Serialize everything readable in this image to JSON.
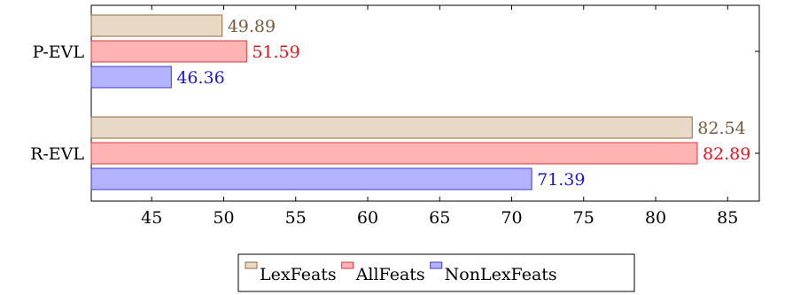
{
  "chart_data": {
    "type": "bar",
    "orientation": "horizontal",
    "title": "",
    "xlabel": "",
    "ylabel": "",
    "categories": [
      "P-EVL",
      "R-EVL"
    ],
    "series": [
      {
        "name": "LexFeats",
        "values": [
          49.89,
          82.54
        ],
        "fill": "#e8d9c6",
        "stroke": "#8c6a3f",
        "label_color": "#7a5a3a"
      },
      {
        "name": "AllFeats",
        "values": [
          51.59,
          82.89
        ],
        "fill": "#ffb3b3",
        "stroke": "#e0373a",
        "label_color": "#e8141c"
      },
      {
        "name": "NonLexFeats",
        "values": [
          46.36,
          71.39
        ],
        "fill": "#b3b3ff",
        "stroke": "#3b3bd6",
        "label_color": "#1a1ad6"
      }
    ],
    "xlim": [
      40.8,
      87.2
    ],
    "xticks": [
      "45",
      "50",
      "55",
      "60",
      "65",
      "70",
      "75",
      "80",
      "85"
    ],
    "grid": false,
    "legend_position": "bottom-center"
  }
}
